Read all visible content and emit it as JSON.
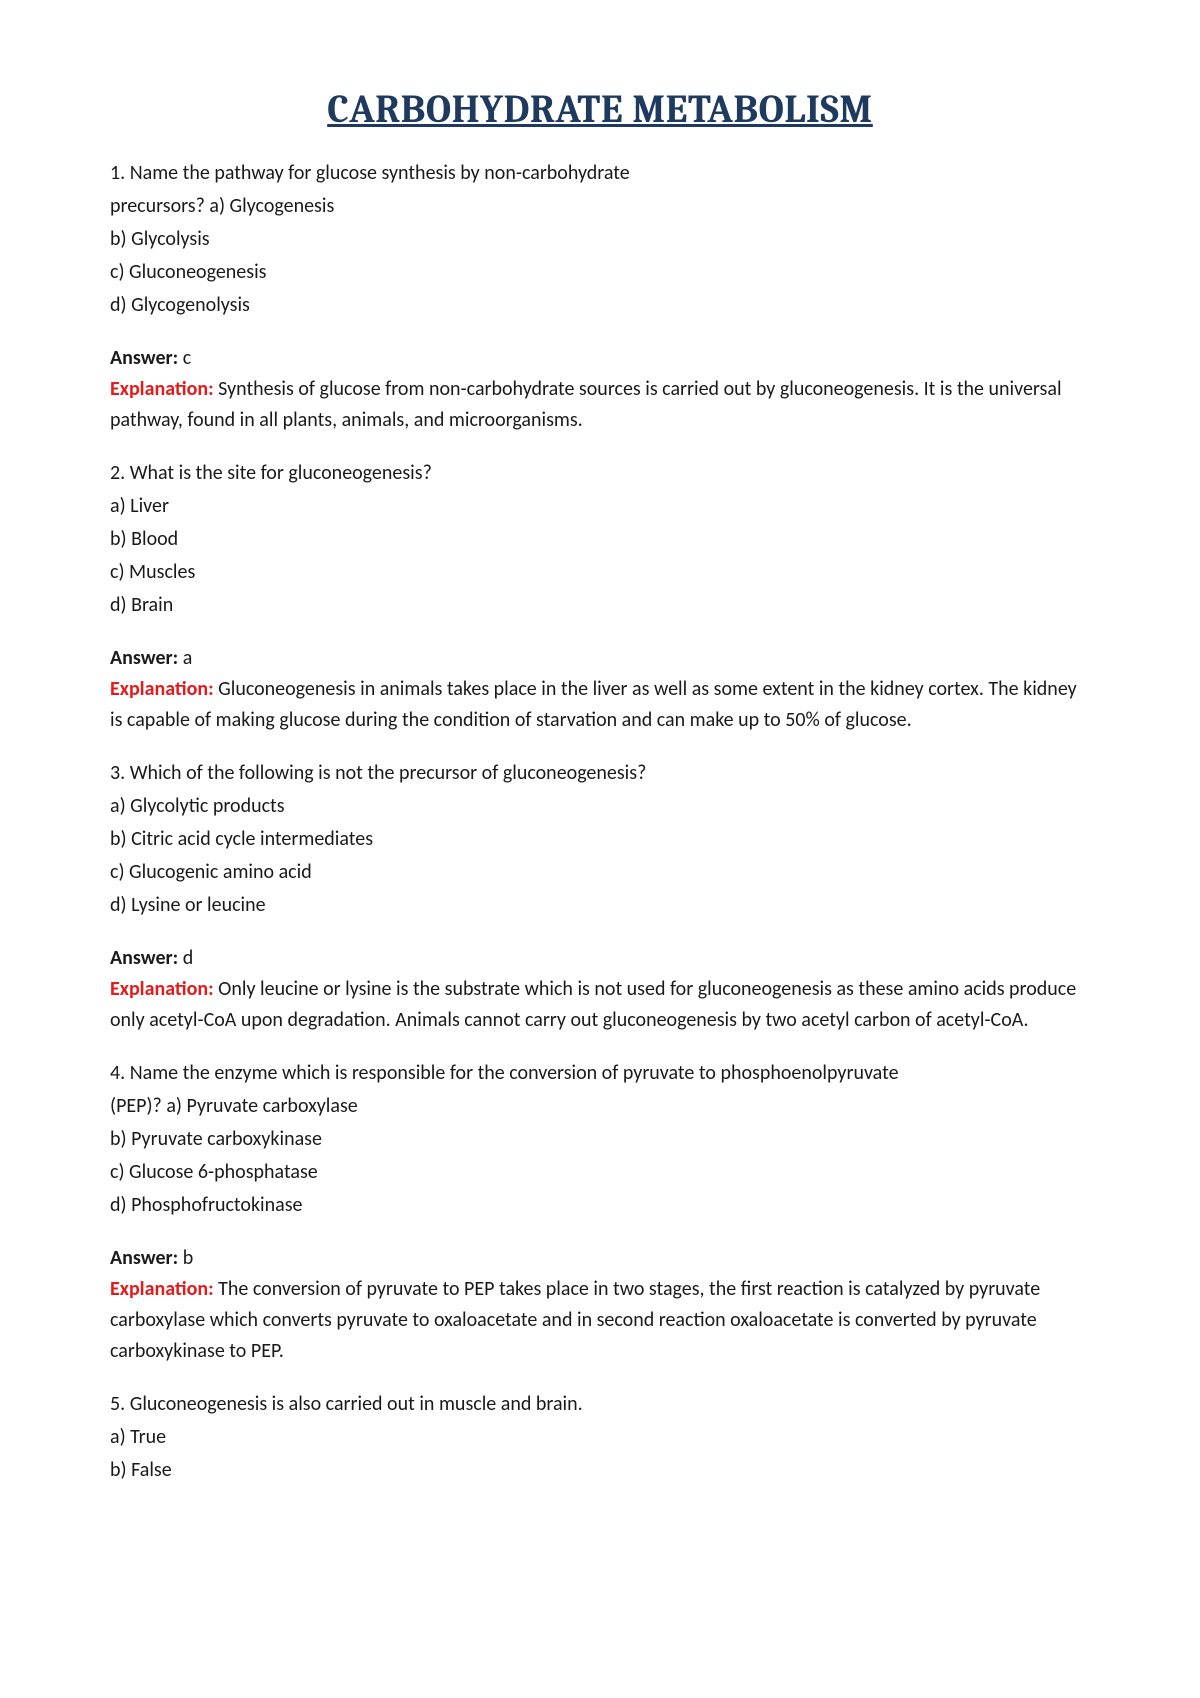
{
  "title": "CARBOHYDRATE METABOLISM",
  "colors": {
    "title": "#1f3a5f",
    "body_text": "#1a1a1a",
    "explanation_label": "#e31b1b",
    "background": "#ffffff"
  },
  "typography": {
    "title_font": "Cambria/Georgia serif",
    "title_size_pt": 29,
    "body_font": "Calibri/Segoe UI sans-serif",
    "body_size_pt": 15
  },
  "labels": {
    "answer": "Answer:",
    "explanation": "Explanation:"
  },
  "questions": [
    {
      "number": "1.",
      "stem_line1": "1. Name the pathway for glucose synthesis by non-carbohydrate",
      "stem_line2": "precursors? a) Glycogenesis",
      "options": [
        "b) Glycolysis",
        "c) Gluconeogenesis",
        "d) Glycogenolysis"
      ],
      "answer": "c",
      "explanation": "Synthesis of glucose from non-carbohydrate sources is carried out by gluconeogenesis. It is the universal pathway, found in all plants, animals, and microorganisms."
    },
    {
      "number": "2.",
      "stem_line1": "2. What is the site for gluconeogenesis?",
      "stem_line2": null,
      "options": [
        "a) Liver",
        "b) Blood",
        "c) Muscles",
        "d) Brain"
      ],
      "answer": "a",
      "explanation": "Gluconeogenesis in animals takes place in the liver as well as some extent in the kidney cortex. The kidney is capable of making glucose during the condition of starvation and can make up to 50% of glucose."
    },
    {
      "number": "3.",
      "stem_line1": "3. Which of the following is not the precursor of gluconeogenesis?",
      "stem_line2": null,
      "options": [
        "a) Glycolytic products",
        "b) Citric acid cycle intermediates",
        "c) Glucogenic amino acid",
        "d) Lysine or leucine"
      ],
      "answer": "d",
      "explanation": "Only leucine or lysine is the substrate which is not used for gluconeogenesis as these amino acids produce only acetyl-CoA upon degradation. Animals cannot carry out gluconeogenesis by two acetyl carbon of acetyl-CoA."
    },
    {
      "number": "4.",
      "stem_line1": "4. Name the enzyme which is responsible for the conversion of pyruvate to phosphoenolpyruvate",
      "stem_line2": "(PEP)? a) Pyruvate carboxylase",
      "options": [
        "b) Pyruvate carboxykinase",
        "c) Glucose 6-phosphatase",
        "d) Phosphofructokinase"
      ],
      "answer": "b",
      "explanation": "The conversion of pyruvate to PEP takes place in two stages, the first reaction is catalyzed by pyruvate carboxylase which converts pyruvate to oxaloacetate and in second reaction oxaloacetate is converted by pyruvate carboxykinase to PEP."
    },
    {
      "number": "5.",
      "stem_line1": "5. Gluconeogenesis is also carried out in muscle and brain.",
      "stem_line2": null,
      "options": [
        "a) True",
        "b) False"
      ],
      "answer": null,
      "explanation": null
    }
  ]
}
